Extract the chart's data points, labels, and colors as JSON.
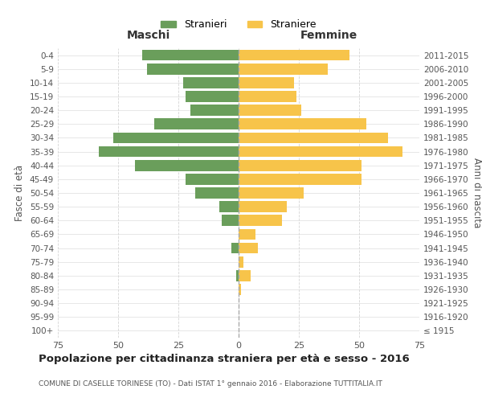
{
  "age_groups": [
    "100+",
    "95-99",
    "90-94",
    "85-89",
    "80-84",
    "75-79",
    "70-74",
    "65-69",
    "60-64",
    "55-59",
    "50-54",
    "45-49",
    "40-44",
    "35-39",
    "30-34",
    "25-29",
    "20-24",
    "15-19",
    "10-14",
    "5-9",
    "0-4"
  ],
  "birth_years": [
    "≤ 1915",
    "1916-1920",
    "1921-1925",
    "1926-1930",
    "1931-1935",
    "1936-1940",
    "1941-1945",
    "1946-1950",
    "1951-1955",
    "1956-1960",
    "1961-1965",
    "1966-1970",
    "1971-1975",
    "1976-1980",
    "1981-1985",
    "1986-1990",
    "1991-1995",
    "1996-2000",
    "2001-2005",
    "2006-2010",
    "2011-2015"
  ],
  "maschi": [
    0,
    0,
    0,
    0,
    1,
    0,
    3,
    0,
    7,
    8,
    18,
    22,
    43,
    58,
    52,
    35,
    20,
    22,
    23,
    38,
    40
  ],
  "femmine": [
    0,
    0,
    0,
    1,
    5,
    2,
    8,
    7,
    18,
    20,
    27,
    51,
    51,
    68,
    62,
    53,
    26,
    24,
    23,
    37,
    46
  ],
  "maschi_color": "#6a9e5b",
  "femmine_color": "#f7c44a",
  "background_color": "#ffffff",
  "grid_color": "#d5d5d5",
  "title": "Popolazione per cittadinanza straniera per età e sesso - 2016",
  "subtitle": "COMUNE DI CASELLE TORINESE (TO) - Dati ISTAT 1° gennaio 2016 - Elaborazione TUTTITALIA.IT",
  "xlabel_left": "Maschi",
  "xlabel_right": "Femmine",
  "ylabel_left": "Fasce di età",
  "ylabel_right": "Anni di nascita",
  "legend_maschi": "Stranieri",
  "legend_femmine": "Straniere",
  "xlim": 75,
  "bar_height": 0.8
}
